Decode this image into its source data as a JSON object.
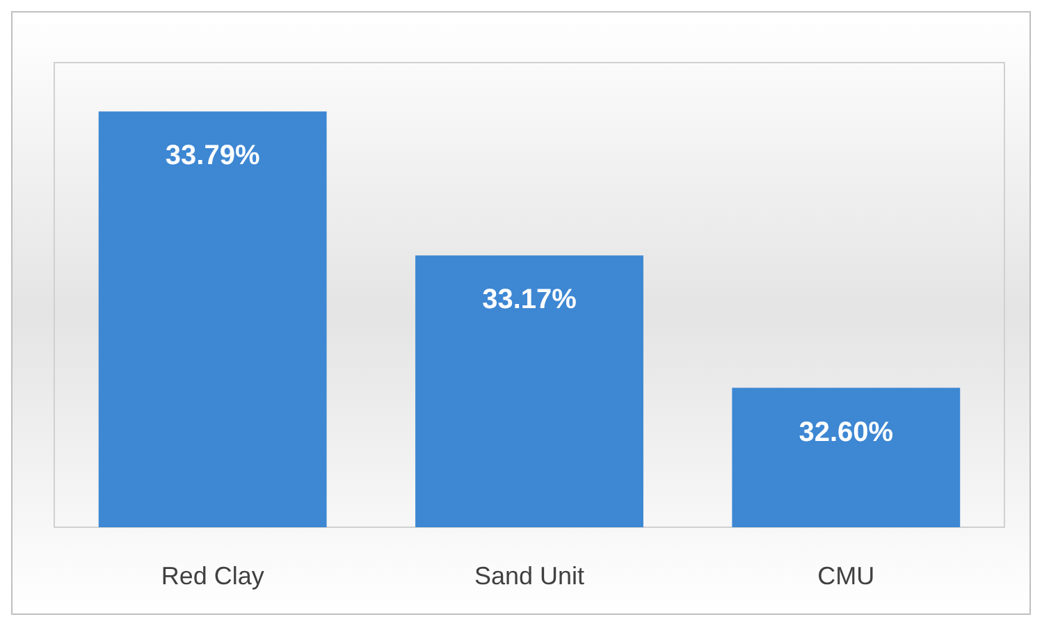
{
  "chart_data": {
    "type": "bar",
    "categories": [
      "Red Clay",
      "Sand Unit",
      "CMU"
    ],
    "values": [
      33.79,
      33.17,
      32.6
    ],
    "value_labels": [
      "33.79%",
      "33.17%",
      "32.60%"
    ],
    "color": "#3d87d3",
    "ylim": [
      32,
      34
    ],
    "tick_labels": "x",
    "grid": false
  }
}
